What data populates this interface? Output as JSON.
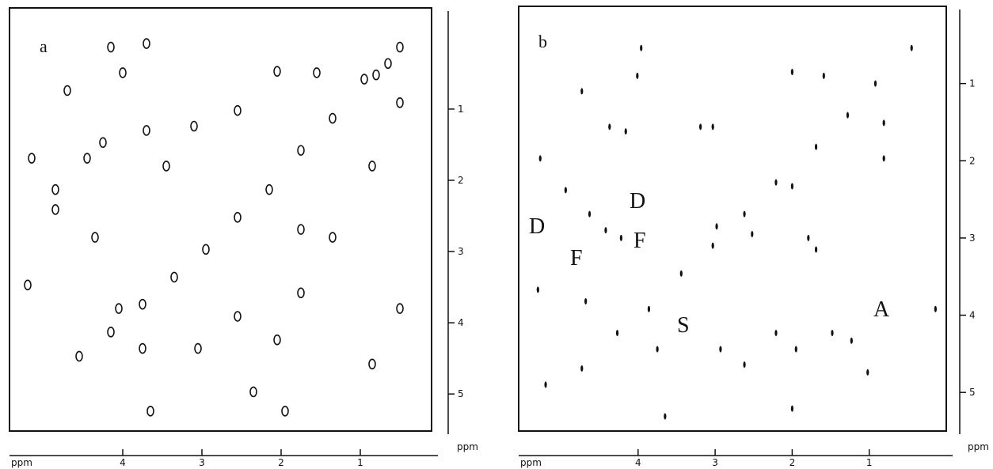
{
  "chart_data": [
    {
      "type": "contour",
      "panel_label": "a",
      "x_label": "ppm",
      "y_label": "ppm",
      "xlim": [
        5.43,
        0.1
      ],
      "xticks": [
        4,
        3,
        2,
        1
      ],
      "ylim": [
        -0.42,
        5.52
      ],
      "yticks": [
        1,
        2,
        3,
        4,
        5
      ],
      "peaks": {
        "x": [
          4.7,
          4.15,
          4.0,
          3.7,
          2.05,
          1.55,
          0.8,
          0.5,
          0.5,
          5.15,
          4.85,
          4.85,
          4.45,
          4.25,
          3.7,
          3.45,
          3.1,
          2.55,
          4.35,
          1.75,
          1.35,
          1.75,
          2.55,
          2.05,
          3.05,
          3.75,
          2.35,
          1.95,
          0.85,
          0.5,
          5.2,
          3.65,
          0.85,
          4.05,
          4.55,
          4.15,
          3.75,
          3.35,
          2.95,
          2.55,
          2.15,
          1.75,
          1.35,
          0.95,
          0.65
        ],
        "y": [
          0.74,
          0.13,
          0.49,
          0.08,
          0.47,
          0.49,
          0.52,
          0.13,
          0.91,
          1.69,
          2.13,
          2.41,
          1.69,
          1.47,
          1.3,
          1.8,
          1.24,
          1.02,
          2.8,
          2.69,
          2.8,
          3.58,
          3.91,
          4.24,
          4.36,
          4.36,
          4.97,
          5.24,
          4.58,
          3.8,
          3.47,
          5.24,
          1.8,
          3.8,
          4.47,
          4.13,
          3.74,
          3.36,
          2.97,
          2.52,
          2.13,
          1.58,
          1.13,
          0.58,
          0.36
        ]
      }
    },
    {
      "type": "contour",
      "panel_label": "b",
      "x_label": "ppm",
      "y_label": "ppm",
      "xlim": [
        5.55,
        0.0
      ],
      "xticks": [
        4,
        3,
        2,
        1
      ],
      "ylim": [
        0.0,
        5.5
      ],
      "yticks": [
        1,
        2,
        3,
        4,
        5
      ],
      "annotations": [
        "D",
        "F",
        "D",
        "F",
        "S",
        "A"
      ],
      "peaks": {
        "x": [
          4.73,
          3.96,
          4.01,
          2.0,
          1.59,
          5.27,
          4.37,
          4.16,
          3.19,
          3.03,
          4.94,
          4.63,
          4.42,
          4.22,
          2.98,
          1.79,
          1.69,
          5.3,
          4.68,
          3.75,
          2.93,
          2.62,
          2.21,
          1.95,
          1.48,
          1.23,
          2.0,
          3.65,
          1.02,
          0.14,
          0.81,
          0.81,
          2.0,
          2.52,
          5.2,
          4.73,
          4.27,
          3.86,
          3.44,
          3.03,
          2.62,
          2.21,
          1.69,
          1.28,
          0.92,
          0.45
        ],
        "y": [
          1.1,
          0.54,
          0.9,
          0.85,
          0.9,
          1.97,
          1.56,
          1.62,
          1.56,
          1.56,
          2.38,
          2.69,
          2.9,
          3.0,
          2.85,
          3.0,
          3.15,
          3.67,
          3.82,
          4.44,
          4.44,
          4.64,
          4.23,
          4.44,
          4.23,
          4.33,
          5.21,
          5.31,
          4.74,
          3.92,
          1.51,
          1.97,
          2.33,
          2.95,
          4.9,
          4.69,
          4.23,
          3.92,
          3.46,
          3.1,
          2.69,
          2.28,
          1.82,
          1.41,
          1.0,
          0.54
        ]
      }
    }
  ]
}
